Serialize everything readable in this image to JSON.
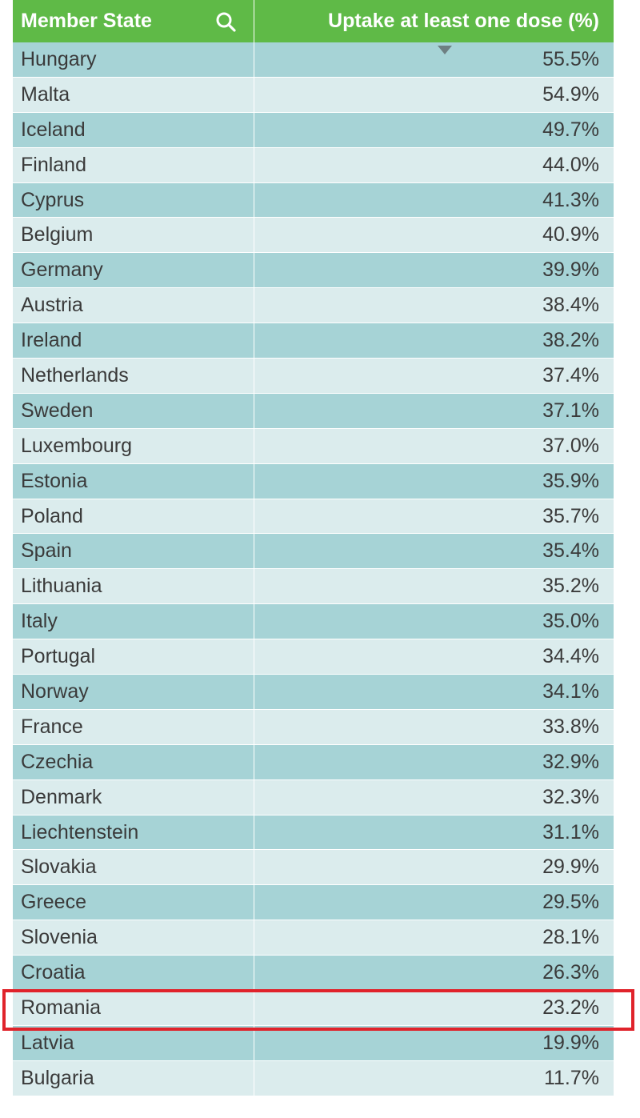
{
  "table": {
    "header": {
      "state_label": "Member State",
      "value_label": "Uptake at least one dose (%)"
    },
    "icons": {
      "search": "search-icon",
      "sort": "sort-descending-icon"
    },
    "colors": {
      "header_bg": "#5fba47",
      "row_dark": "#a6d3d6",
      "row_light": "#dbeced",
      "highlight": "#e0232b"
    },
    "highlighted_row": "Romania",
    "rows": [
      {
        "state": "Hungary",
        "value": "55.5%"
      },
      {
        "state": "Malta",
        "value": "54.9%"
      },
      {
        "state": "Iceland",
        "value": "49.7%"
      },
      {
        "state": "Finland",
        "value": "44.0%"
      },
      {
        "state": "Cyprus",
        "value": "41.3%"
      },
      {
        "state": "Belgium",
        "value": "40.9%"
      },
      {
        "state": "Germany",
        "value": "39.9%"
      },
      {
        "state": "Austria",
        "value": "38.4%"
      },
      {
        "state": "Ireland",
        "value": "38.2%"
      },
      {
        "state": "Netherlands",
        "value": "37.4%"
      },
      {
        "state": "Sweden",
        "value": "37.1%"
      },
      {
        "state": "Luxembourg",
        "value": "37.0%"
      },
      {
        "state": "Estonia",
        "value": "35.9%"
      },
      {
        "state": "Poland",
        "value": "35.7%"
      },
      {
        "state": "Spain",
        "value": "35.4%"
      },
      {
        "state": "Lithuania",
        "value": "35.2%"
      },
      {
        "state": "Italy",
        "value": "35.0%"
      },
      {
        "state": "Portugal",
        "value": "34.4%"
      },
      {
        "state": "Norway",
        "value": "34.1%"
      },
      {
        "state": "France",
        "value": "33.8%"
      },
      {
        "state": "Czechia",
        "value": "32.9%"
      },
      {
        "state": "Denmark",
        "value": "32.3%"
      },
      {
        "state": "Liechtenstein",
        "value": "31.1%"
      },
      {
        "state": "Slovakia",
        "value": "29.9%"
      },
      {
        "state": "Greece",
        "value": "29.5%"
      },
      {
        "state": "Slovenia",
        "value": "28.1%"
      },
      {
        "state": "Croatia",
        "value": "26.3%"
      },
      {
        "state": "Romania",
        "value": "23.2%"
      },
      {
        "state": "Latvia",
        "value": "19.9%"
      },
      {
        "state": "Bulgaria",
        "value": "11.7%"
      }
    ]
  }
}
